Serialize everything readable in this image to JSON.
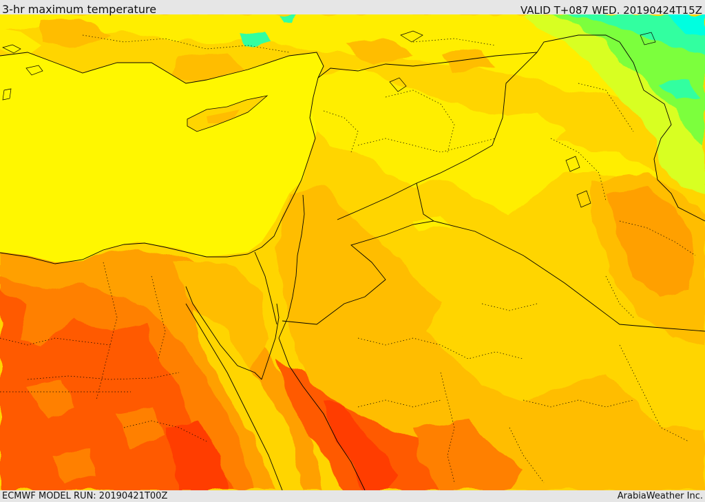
{
  "header": {
    "title": "3-hr maximum temperature",
    "valid_time": "VALID T+087 WED. 20190424T15Z"
  },
  "footer": {
    "model_run": "ECMWF MODEL RUN: 20190421T00Z",
    "credit": "ArabiaWeather Inc."
  },
  "map": {
    "field_colors": {
      "sea": "#fff700",
      "yellow_light": "#ffee00",
      "yellow_orange": "#ffd500",
      "orange_light": "#ffbd00",
      "orange": "#ffa000",
      "orange_dark": "#ff8000",
      "red_orange": "#ff5a00",
      "red": "#ff3c00",
      "yellow_green": "#d8ff20",
      "green": "#7cff3c",
      "cyan_green": "#30ffa0",
      "cyan": "#00ffe0"
    },
    "border_color": "#000000"
  }
}
